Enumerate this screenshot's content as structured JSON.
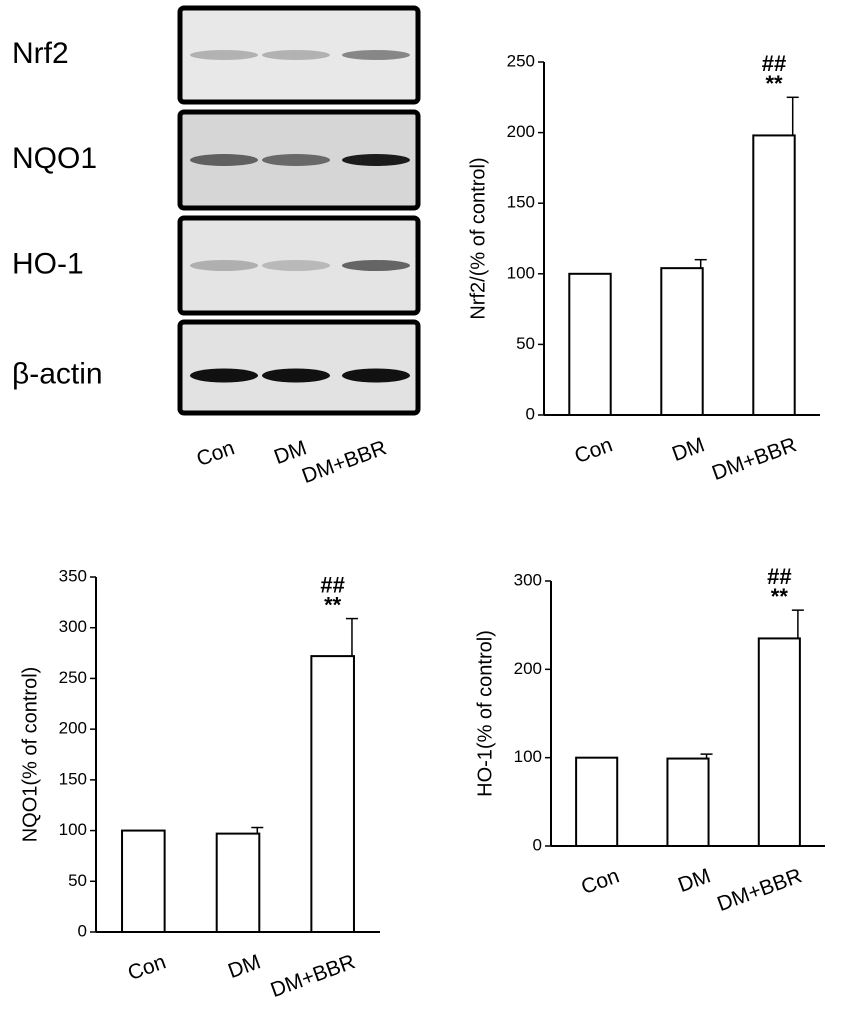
{
  "blot": {
    "proteins": [
      "Nrf2",
      "NQO1",
      "HO-1",
      "β-actin"
    ],
    "lanes": [
      "Con",
      "DM",
      "DM+BBR"
    ]
  },
  "chart_data": [
    {
      "type": "bar",
      "ylabel": "Nrf2/(% of control)",
      "categories": [
        "Con",
        "DM",
        "DM+BBR"
      ],
      "values": [
        100,
        104,
        198
      ],
      "errors": [
        0,
        6,
        27
      ],
      "color": "#ffffff",
      "edgecolor": "#000000",
      "ylim": [
        0,
        250
      ],
      "yticks": [
        0,
        50,
        100,
        150,
        200,
        250
      ],
      "annotations": [
        "##",
        "**"
      ]
    },
    {
      "type": "bar",
      "ylabel": "NQO1(% of control)",
      "categories": [
        "Con",
        "DM",
        "DM+BBR"
      ],
      "values": [
        100,
        97,
        272
      ],
      "errors": [
        0,
        6,
        37
      ],
      "color": "#ffffff",
      "edgecolor": "#000000",
      "ylim": [
        0,
        350
      ],
      "yticks": [
        0,
        50,
        100,
        150,
        200,
        250,
        300,
        350
      ],
      "annotations": [
        "##",
        "**"
      ]
    },
    {
      "type": "bar",
      "ylabel": "HO-1(% of control)",
      "categories": [
        "Con",
        "DM",
        "DM+BBR"
      ],
      "values": [
        100,
        99,
        235
      ],
      "errors": [
        0,
        5,
        32
      ],
      "color": "#ffffff",
      "edgecolor": "#000000",
      "ylim": [
        0,
        300
      ],
      "yticks": [
        0,
        100,
        200,
        300
      ],
      "annotations": [
        "##",
        "**"
      ]
    }
  ]
}
